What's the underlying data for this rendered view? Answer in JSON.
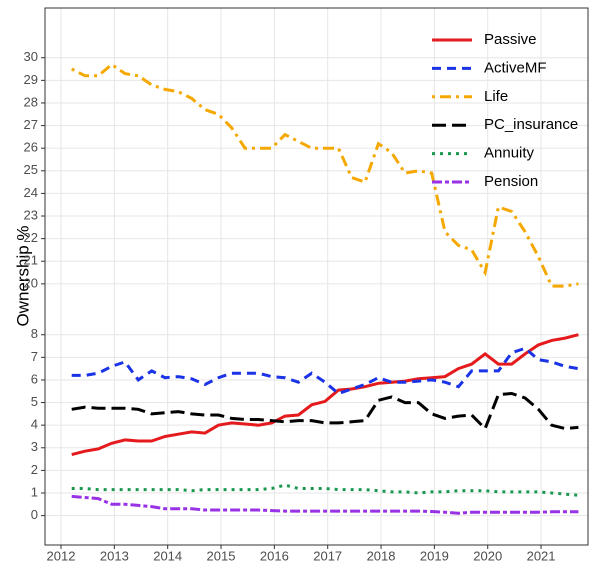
{
  "chart_data": {
    "type": "line",
    "y_label": "Ownership %",
    "x": [
      2012.2,
      2012.45,
      2012.7,
      2012.95,
      2013.2,
      2013.45,
      2013.7,
      2013.95,
      2014.2,
      2014.45,
      2014.7,
      2014.95,
      2015.2,
      2015.45,
      2015.7,
      2015.95,
      2016.2,
      2016.45,
      2016.7,
      2016.95,
      2017.2,
      2017.45,
      2017.7,
      2017.95,
      2018.2,
      2018.45,
      2018.7,
      2018.95,
      2019.2,
      2019.45,
      2019.7,
      2019.95,
      2020.2,
      2020.45,
      2020.7,
      2020.95,
      2021.2,
      2021.45,
      2021.7
    ],
    "series": [
      {
        "name": "Passive",
        "color": "#e41a1c",
        "dash": "solid",
        "values": [
          2.7,
          2.85,
          2.95,
          3.2,
          3.35,
          3.3,
          3.3,
          3.5,
          3.6,
          3.7,
          3.65,
          4.0,
          4.1,
          4.05,
          4.0,
          4.1,
          4.4,
          4.45,
          4.9,
          5.05,
          5.55,
          5.6,
          5.7,
          5.85,
          5.9,
          5.95,
          6.05,
          6.1,
          6.15,
          6.5,
          6.7,
          7.15,
          6.7,
          6.7,
          7.15,
          7.55,
          7.75,
          7.85,
          8.0
        ]
      },
      {
        "name": "ActiveMF",
        "color": "#1a33e6",
        "dash": "dashed",
        "values": [
          6.2,
          6.2,
          6.3,
          6.6,
          6.8,
          6.0,
          6.4,
          6.1,
          6.15,
          6.05,
          5.8,
          6.1,
          6.3,
          6.3,
          6.3,
          6.15,
          6.1,
          5.9,
          6.3,
          5.9,
          5.4,
          5.6,
          5.8,
          6.1,
          5.9,
          5.9,
          5.95,
          6.0,
          5.9,
          5.7,
          6.4,
          6.4,
          6.4,
          7.2,
          7.4,
          6.9,
          6.8,
          6.6,
          6.5
        ]
      },
      {
        "name": "Life",
        "color": "#f5a800",
        "dash": "dotdash",
        "values": [
          29.5,
          29.2,
          29.2,
          29.7,
          29.3,
          29.2,
          28.8,
          28.6,
          28.5,
          28.2,
          27.7,
          27.5,
          26.9,
          26.0,
          26.0,
          26.0,
          26.6,
          26.3,
          26.0,
          26.0,
          26.0,
          24.7,
          24.5,
          26.2,
          25.8,
          24.9,
          25.0,
          24.9,
          22.3,
          21.7,
          21.5,
          20.5,
          23.4,
          23.2,
          22.3,
          21.2,
          19.9,
          19.9,
          20.0
        ]
      },
      {
        "name": "PC_insurance",
        "color": "#000000",
        "dash": "longdash",
        "values": [
          4.7,
          4.8,
          4.75,
          4.75,
          4.75,
          4.7,
          4.5,
          4.55,
          4.6,
          4.5,
          4.45,
          4.45,
          4.3,
          4.25,
          4.25,
          4.2,
          4.15,
          4.2,
          4.2,
          4.1,
          4.1,
          4.15,
          4.2,
          5.1,
          5.25,
          5.0,
          5.0,
          4.5,
          4.3,
          4.4,
          4.45,
          3.85,
          5.35,
          5.4,
          5.2,
          4.7,
          4.0,
          3.85,
          3.9
        ]
      },
      {
        "name": "Annuity",
        "color": "#1a9850",
        "dash": "dotted",
        "values": [
          1.2,
          1.2,
          1.15,
          1.15,
          1.15,
          1.15,
          1.15,
          1.15,
          1.15,
          1.1,
          1.15,
          1.15,
          1.15,
          1.15,
          1.15,
          1.2,
          1.35,
          1.2,
          1.2,
          1.2,
          1.15,
          1.15,
          1.15,
          1.1,
          1.05,
          1.05,
          1.0,
          1.05,
          1.05,
          1.1,
          1.1,
          1.1,
          1.05,
          1.05,
          1.05,
          1.05,
          1.0,
          0.95,
          0.9
        ]
      },
      {
        "name": "Pension",
        "color": "#9932e6",
        "dash": "twodash",
        "values": [
          0.85,
          0.8,
          0.75,
          0.5,
          0.5,
          0.45,
          0.4,
          0.3,
          0.3,
          0.3,
          0.25,
          0.25,
          0.25,
          0.25,
          0.25,
          0.22,
          0.2,
          0.2,
          0.2,
          0.2,
          0.2,
          0.2,
          0.2,
          0.2,
          0.2,
          0.2,
          0.2,
          0.18,
          0.15,
          0.1,
          0.15,
          0.15,
          0.15,
          0.15,
          0.15,
          0.15,
          0.17,
          0.17,
          0.17
        ]
      }
    ],
    "xlim": [
      2011.7,
      2021.88
    ],
    "xticks": [
      2012,
      2013,
      2014,
      2015,
      2016,
      2017,
      2018,
      2019,
      2020,
      2021
    ],
    "ylim": [
      -1.3,
      32.2
    ],
    "y_break": [
      8,
      20
    ],
    "yticks": [
      0,
      1,
      2,
      3,
      4,
      5,
      6,
      7,
      8,
      20,
      21,
      22,
      23,
      24,
      25,
      26,
      27,
      28,
      29,
      30
    ],
    "grid": true,
    "legend": "top-right"
  }
}
